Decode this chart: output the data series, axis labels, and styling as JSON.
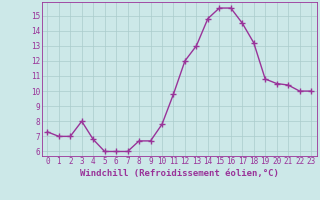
{
  "x": [
    0,
    1,
    2,
    3,
    4,
    5,
    6,
    7,
    8,
    9,
    10,
    11,
    12,
    13,
    14,
    15,
    16,
    17,
    18,
    19,
    20,
    21,
    22,
    23
  ],
  "y": [
    7.3,
    7.0,
    7.0,
    8.0,
    6.8,
    6.0,
    6.0,
    6.0,
    6.7,
    6.7,
    7.8,
    9.8,
    12.0,
    13.0,
    14.8,
    15.5,
    15.5,
    14.5,
    13.2,
    10.8,
    10.5,
    10.4,
    10.0,
    10.0
  ],
  "line_color": "#993399",
  "marker": "+",
  "markersize": 4,
  "linewidth": 1.0,
  "markeredgewidth": 1.0,
  "xlabel": "Windchill (Refroidissement éolien,°C)",
  "xlabel_fontsize": 6.5,
  "xlim": [
    -0.5,
    23.5
  ],
  "ylim": [
    5.7,
    15.9
  ],
  "yticks": [
    6,
    7,
    8,
    9,
    10,
    11,
    12,
    13,
    14,
    15
  ],
  "xticks": [
    0,
    1,
    2,
    3,
    4,
    5,
    6,
    7,
    8,
    9,
    10,
    11,
    12,
    13,
    14,
    15,
    16,
    17,
    18,
    19,
    20,
    21,
    22,
    23
  ],
  "bg_color": "#cce8e8",
  "grid_color": "#aacccc",
  "tick_fontsize": 5.5
}
